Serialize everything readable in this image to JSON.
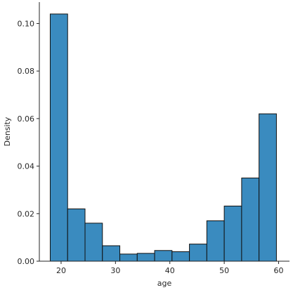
{
  "chart_data": {
    "type": "bar",
    "histogram": true,
    "xlabel": "age",
    "ylabel": "Density",
    "xlim": [
      16,
      62
    ],
    "ylim": [
      0,
      0.109
    ],
    "xticks": [
      20,
      30,
      40,
      50,
      60
    ],
    "yticks": [
      0.0,
      0.02,
      0.04,
      0.06,
      0.08,
      0.1
    ],
    "ytick_labels": [
      "0.00",
      "0.02",
      "0.04",
      "0.06",
      "0.08",
      "0.10"
    ],
    "xtick_labels": [
      "20",
      "30",
      "40",
      "50",
      "60"
    ],
    "bins": [
      {
        "x0": 18.0,
        "x1": 21.2,
        "value": 0.104
      },
      {
        "x0": 21.2,
        "x1": 24.4,
        "value": 0.022
      },
      {
        "x0": 24.4,
        "x1": 27.6,
        "value": 0.016
      },
      {
        "x0": 27.6,
        "x1": 30.8,
        "value": 0.0065
      },
      {
        "x0": 30.8,
        "x1": 34.0,
        "value": 0.003
      },
      {
        "x0": 34.0,
        "x1": 37.2,
        "value": 0.0033
      },
      {
        "x0": 37.2,
        "x1": 40.4,
        "value": 0.0045
      },
      {
        "x0": 40.4,
        "x1": 43.6,
        "value": 0.004
      },
      {
        "x0": 43.6,
        "x1": 46.8,
        "value": 0.0072
      },
      {
        "x0": 46.8,
        "x1": 50.0,
        "value": 0.017
      },
      {
        "x0": 50.0,
        "x1": 53.2,
        "value": 0.0232
      },
      {
        "x0": 53.2,
        "x1": 56.4,
        "value": 0.035
      },
      {
        "x0": 56.4,
        "x1": 59.6,
        "value": 0.062
      }
    ],
    "grid": false,
    "bar_color": "#3a8bbf",
    "edge_color": "#111111"
  }
}
